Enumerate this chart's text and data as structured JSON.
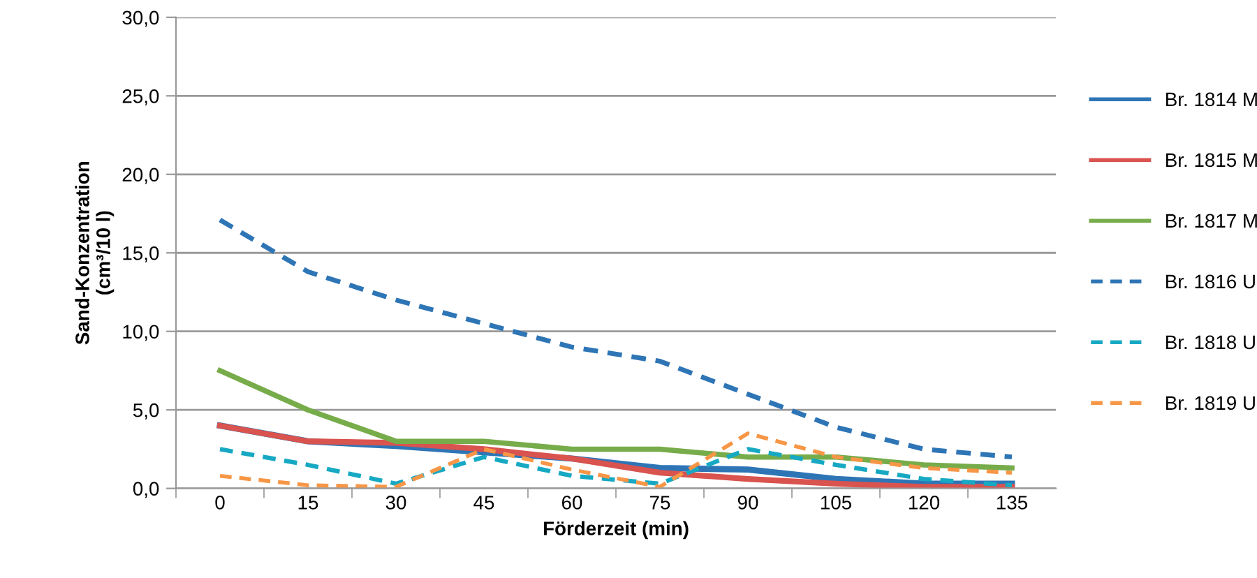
{
  "chart_data": {
    "type": "line",
    "xlabel": "Förderzeit (min)",
    "ylabel": "Sand-Konzentration\n(cm³/10 l)",
    "categories": [
      "0",
      "15",
      "30",
      "45",
      "60",
      "75",
      "90",
      "105",
      "120",
      "135"
    ],
    "series": [
      {
        "name": "Br. 1814 M",
        "color": "#2e75b6",
        "line_style": "solid",
        "values": [
          4.0,
          3.0,
          2.7,
          2.3,
          1.9,
          1.3,
          1.2,
          0.6,
          0.3,
          0.3
        ]
      },
      {
        "name": "Br. 1815 M",
        "color": "#d9534f",
        "line_style": "solid",
        "values": [
          4.0,
          3.0,
          2.9,
          2.5,
          1.9,
          1.0,
          0.6,
          0.3,
          0.1,
          0.1
        ]
      },
      {
        "name": "Br. 1817 M",
        "color": "#77ac4a",
        "line_style": "solid",
        "values": [
          7.5,
          5.0,
          3.0,
          3.0,
          2.5,
          2.5,
          2.0,
          2.0,
          1.5,
          1.3
        ]
      },
      {
        "name": "Br. 1816 U",
        "color": "#2e75b6",
        "line_style": "dashed",
        "values": [
          17.1,
          13.8,
          12.0,
          10.5,
          9.0,
          8.1,
          6.0,
          3.9,
          2.5,
          2.0
        ]
      },
      {
        "name": "Br. 1818 U",
        "color": "#17a9c3",
        "line_style": "dashed",
        "values": [
          2.5,
          1.5,
          0.3,
          2.0,
          0.8,
          0.3,
          2.5,
          1.5,
          0.6,
          0.2
        ]
      },
      {
        "name": "Br. 1819 U",
        "color": "#f79646",
        "line_style": "dashed",
        "values": [
          0.8,
          0.2,
          0.1,
          2.5,
          1.2,
          0.1,
          3.5,
          2.0,
          1.3,
          1.0
        ]
      }
    ],
    "ylim": [
      0,
      30
    ],
    "yticks": [
      {
        "value": 0,
        "label": "0,0"
      },
      {
        "value": 5,
        "label": "5,0"
      },
      {
        "value": 10,
        "label": "10,0"
      },
      {
        "value": 15,
        "label": "15,0"
      },
      {
        "value": 20,
        "label": "20,0"
      },
      {
        "value": 25,
        "label": "25,0"
      },
      {
        "value": 30,
        "label": "30,0"
      }
    ],
    "grid": "y",
    "legend": "right",
    "marker": "none"
  }
}
